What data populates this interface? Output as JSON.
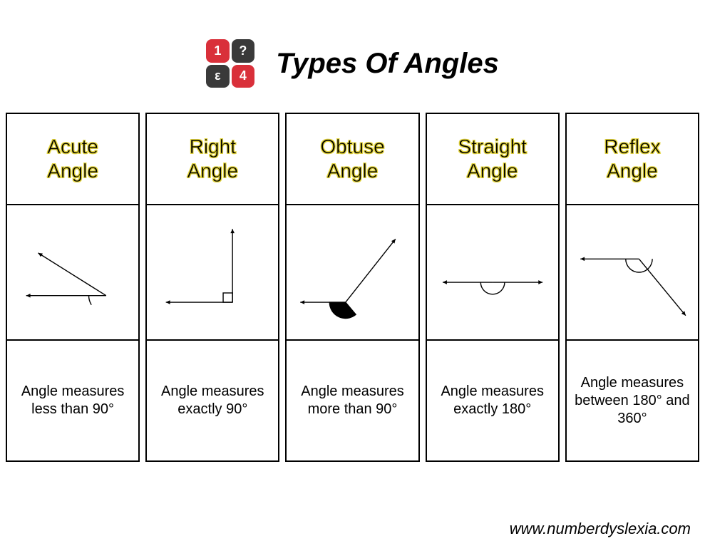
{
  "title": "Types Of Angles",
  "logo": {
    "tiles": [
      {
        "label": "1",
        "bg": "#d9303a"
      },
      {
        "label": "?",
        "bg": "#3a3a3a"
      },
      {
        "label": "ε",
        "bg": "#3a3a3a"
      },
      {
        "label": "4",
        "bg": "#d9303a"
      }
    ]
  },
  "footer": "www.numberdyslexia.com",
  "stroke_color": "#000000",
  "stroke_width": 1.5,
  "arrow_size": 7,
  "cards": [
    {
      "title": "Acute\nAngle",
      "desc": "Angle measures less than 90°",
      "diagram": {
        "type": "angle",
        "vertex": [
          140,
          120
        ],
        "ray1_end": [
          20,
          120
        ],
        "ray2_end": [
          38,
          56
        ],
        "arc_r": 26,
        "arc_start_deg": 180,
        "arc_end_deg": 212
      }
    },
    {
      "title": "Right\nAngle",
      "desc": "Angle measures exactly 90°",
      "diagram": {
        "type": "angle",
        "vertex": [
          120,
          130
        ],
        "ray1_end": [
          20,
          130
        ],
        "ray2_end": [
          120,
          20
        ],
        "square_marker": true,
        "square_size": 14
      }
    },
    {
      "title": "Obtuse\nAngle",
      "desc": "Angle measures more than 90°",
      "diagram": {
        "type": "angle",
        "vertex": [
          80,
          130
        ],
        "ray1_end": [
          12,
          130
        ],
        "ray2_end": [
          155,
          35
        ],
        "arc_r": 24,
        "arc_start_deg": 180,
        "arc_end_deg": 310,
        "arc_fill": "#000000"
      }
    },
    {
      "title": "Straight\nAngle",
      "desc": "Angle measures exactly 180°",
      "diagram": {
        "type": "angle",
        "vertex": [
          90,
          100
        ],
        "ray1_end": [
          15,
          100
        ],
        "ray2_end": [
          165,
          100
        ],
        "arc_r": 18,
        "arc_start_deg": 180,
        "arc_end_deg": 360
      }
    },
    {
      "title": "Reflex\nAngle",
      "desc": "Angle measures between 180° and 360°",
      "diagram": {
        "type": "angle",
        "vertex": [
          100,
          65
        ],
        "ray1_end": [
          12,
          65
        ],
        "ray2_end": [
          170,
          150
        ],
        "arc_r": 20,
        "arc_start_deg": 180,
        "arc_end_deg": 360
      }
    }
  ]
}
